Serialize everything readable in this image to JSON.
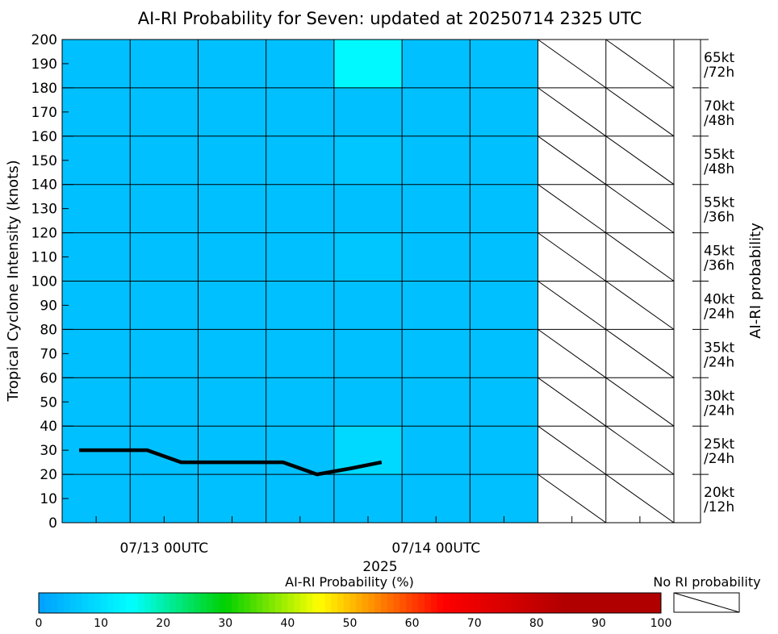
{
  "chart_data": {
    "type": "heatmap",
    "title": "AI-RI Probability for Seven: updated at 20250714 2325 UTC",
    "ylabel": "Tropical Cyclone Intensity (knots)",
    "right_label": "AI-RI probability",
    "xlabel_year": "2025",
    "ylim": [
      0,
      200
    ],
    "yticks": [
      0,
      10,
      20,
      30,
      40,
      50,
      60,
      70,
      80,
      90,
      100,
      110,
      120,
      130,
      140,
      150,
      160,
      170,
      180,
      190,
      200
    ],
    "x_time_labels": [
      "07/13 00UTC",
      "07/14 00UTC"
    ],
    "x_minor_ticks_count": 9,
    "columns_total": 9,
    "columns_with_data": 7,
    "row_bands": [
      [
        0,
        20
      ],
      [
        20,
        40
      ],
      [
        40,
        60
      ],
      [
        60,
        80
      ],
      [
        80,
        100
      ],
      [
        100,
        120
      ],
      [
        120,
        140
      ],
      [
        140,
        160
      ],
      [
        160,
        180
      ],
      [
        180,
        200
      ]
    ],
    "right_threshold_labels": [
      [
        "20kt",
        "/12h"
      ],
      [
        "25kt",
        "/24h"
      ],
      [
        "30kt",
        "/24h"
      ],
      [
        "35kt",
        "/24h"
      ],
      [
        "40kt",
        "/24h"
      ],
      [
        "45kt",
        "/36h"
      ],
      [
        "55kt",
        "/36h"
      ],
      [
        "55kt",
        "/48h"
      ],
      [
        "70kt",
        "/48h"
      ],
      [
        "65kt",
        "/72h"
      ]
    ],
    "base_probability_percent": 5,
    "elevated_cells": [
      {
        "column": 4,
        "band": 9,
        "probability_percent": 14
      },
      {
        "column": 4,
        "band": 7,
        "probability_percent": 6
      },
      {
        "column": 4,
        "band": 5,
        "probability_percent": 6
      },
      {
        "column": 4,
        "band": 1,
        "probability_percent": 9
      }
    ],
    "intensity_series": {
      "x_steps": [
        0.5,
        1.5,
        2.5,
        3.5,
        4.5,
        5.5,
        6.5,
        7.5,
        8.5,
        9.4
      ],
      "knots": [
        30,
        30,
        30,
        25,
        25,
        25,
        25,
        20,
        22.5,
        25
      ]
    },
    "colorbar": {
      "title": "AI-RI Probability (%)",
      "ticks": [
        0,
        10,
        20,
        30,
        40,
        50,
        60,
        70,
        80,
        90,
        100
      ],
      "colors": [
        "#00a0ff",
        "#00ffff",
        "#00d000",
        "#ffff00",
        "#ff0000",
        "#b00000"
      ],
      "no_ri_label": "No RI probability"
    }
  }
}
